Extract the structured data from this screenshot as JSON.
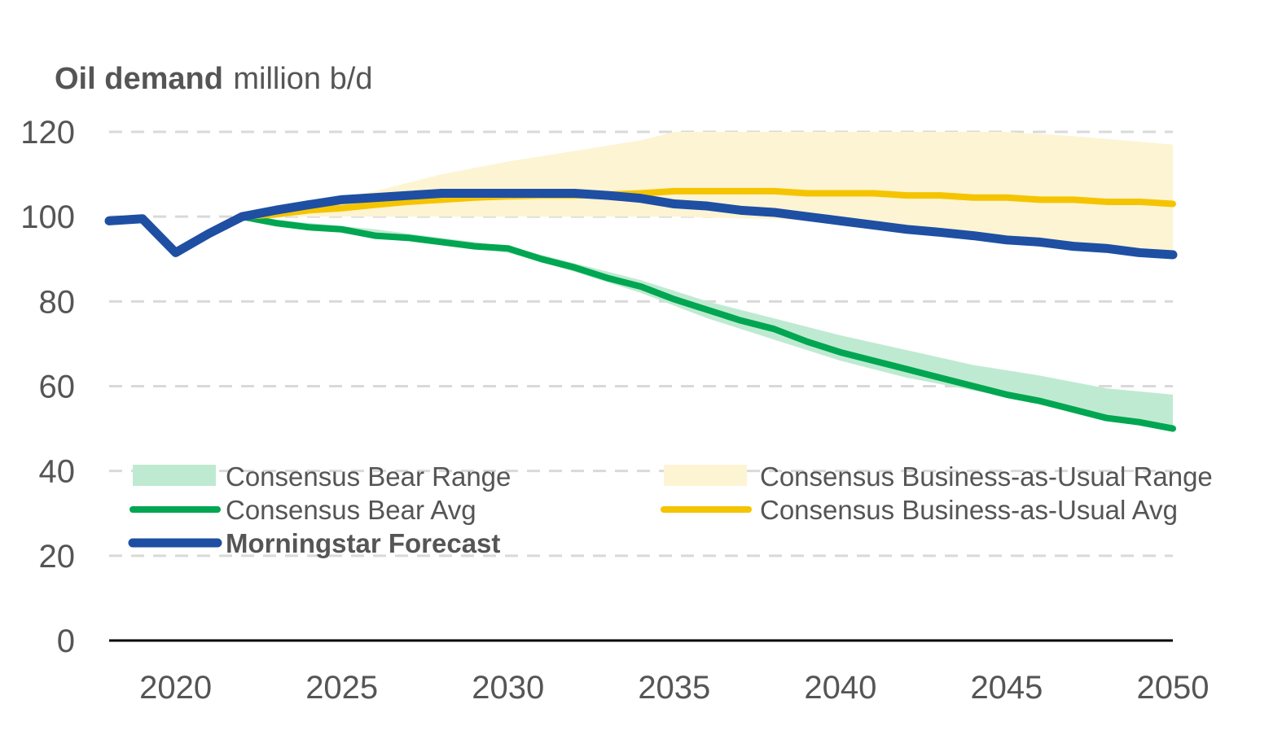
{
  "chart_data": {
    "type": "line",
    "title_bold": "Oil demand",
    "title_unit": "million b/d",
    "xlabel": "",
    "ylabel": "",
    "xlim": [
      2018,
      2050
    ],
    "ylim": [
      0,
      120
    ],
    "x_ticks": [
      2020,
      2025,
      2030,
      2035,
      2040,
      2045,
      2050
    ],
    "x_tick_labels": [
      "2020",
      "2025",
      "2030",
      "2035",
      "2040",
      "2045",
      "2050"
    ],
    "y_ticks": [
      0,
      20,
      40,
      60,
      80,
      100,
      120
    ],
    "y_tick_labels": [
      "0",
      "20",
      "40",
      "60",
      "80",
      "100",
      "120"
    ],
    "grid": "horizontal dashed",
    "legend_position": "lower-left, two columns",
    "colors": {
      "bear_avg": "#00a651",
      "bear_range": "#bfead2",
      "bau_avg": "#f5c400",
      "bau_range": "#fdf4d3",
      "forecast": "#1e4fa3",
      "axis": "#000000",
      "grid": "#d9d9d9",
      "text": "#555555"
    },
    "bands": [
      {
        "name": "Consensus Bear Range",
        "x": [
          2022,
          2024,
          2026,
          2028,
          2030,
          2032,
          2034,
          2036,
          2038,
          2040,
          2042,
          2044,
          2046,
          2048,
          2050
        ],
        "upper": [
          100,
          98.5,
          97,
          95,
          93,
          89,
          85,
          80,
          76,
          72,
          68.5,
          65,
          62.5,
          59.5,
          58
        ],
        "lower": [
          100,
          97.5,
          95.5,
          93.5,
          91.5,
          87,
          82,
          76,
          71,
          66,
          62,
          59,
          56,
          52.5,
          49.5
        ]
      },
      {
        "name": "Consensus Business-as-Usual Range",
        "x": [
          2022,
          2024,
          2026,
          2028,
          2030,
          2032,
          2034,
          2035,
          2040,
          2045,
          2047,
          2050
        ],
        "upper": [
          100,
          103,
          106,
          110,
          113,
          115.5,
          118,
          120,
          120,
          120,
          119,
          117
        ],
        "lower": [
          100,
          100,
          100,
          100,
          100,
          100,
          100,
          100,
          99,
          95,
          93,
          90
        ]
      }
    ],
    "series": [
      {
        "name": "Consensus Bear Avg",
        "x": [
          2022,
          2023,
          2024,
          2025,
          2026,
          2027,
          2028,
          2029,
          2030,
          2031,
          2032,
          2033,
          2034,
          2035,
          2036,
          2037,
          2038,
          2039,
          2040,
          2041,
          2042,
          2043,
          2044,
          2045,
          2046,
          2047,
          2048,
          2049,
          2050
        ],
        "values": [
          100,
          98.5,
          97.5,
          97,
          95.5,
          95,
          94,
          93,
          92.5,
          90,
          88,
          85.5,
          83.5,
          80.5,
          78,
          75.5,
          73.5,
          70.5,
          68,
          66,
          64,
          62,
          60,
          58,
          56.5,
          54.5,
          52.5,
          51.5,
          50
        ]
      },
      {
        "name": "Consensus Business-as-Usual Avg",
        "x": [
          2022,
          2023,
          2024,
          2025,
          2026,
          2027,
          2028,
          2029,
          2030,
          2031,
          2032,
          2033,
          2034,
          2035,
          2036,
          2037,
          2038,
          2039,
          2040,
          2041,
          2042,
          2043,
          2044,
          2045,
          2046,
          2047,
          2048,
          2049,
          2050
        ],
        "values": [
          100,
          100.5,
          101.5,
          102,
          102.8,
          103.5,
          104,
          104.5,
          104.8,
          105,
          105,
          105.2,
          105.5,
          106,
          106,
          106,
          106,
          105.5,
          105.5,
          105.5,
          105,
          105,
          104.5,
          104.5,
          104,
          104,
          103.5,
          103.5,
          103
        ]
      },
      {
        "name": "Morningstar Forecast",
        "x": [
          2018,
          2019,
          2020,
          2021,
          2022,
          2023,
          2024,
          2025,
          2026,
          2027,
          2028,
          2029,
          2030,
          2031,
          2032,
          2033,
          2034,
          2035,
          2036,
          2037,
          2038,
          2039,
          2040,
          2041,
          2042,
          2043,
          2044,
          2045,
          2046,
          2047,
          2048,
          2049,
          2050
        ],
        "values": [
          99,
          99.5,
          91.5,
          96,
          100,
          101.5,
          102.8,
          104,
          104.5,
          105,
          105.5,
          105.5,
          105.5,
          105.5,
          105.5,
          105,
          104.3,
          103,
          102.5,
          101.5,
          101,
          100,
          99,
          98,
          97,
          96.3,
          95.5,
          94.5,
          94,
          93,
          92.5,
          91.5,
          91
        ]
      }
    ],
    "legend": [
      {
        "label": "Consensus Bear Range",
        "kind": "band",
        "color_key": "bear_range",
        "bold": false
      },
      {
        "label": "Consensus Business-as-Usual Range",
        "kind": "band",
        "color_key": "bau_range",
        "bold": false
      },
      {
        "label": "Consensus Bear Avg",
        "kind": "line",
        "color_key": "bear_avg",
        "bold": false
      },
      {
        "label": "Consensus Business-as-Usual Avg",
        "kind": "line",
        "color_key": "bau_avg",
        "bold": false
      },
      {
        "label": "Morningstar Forecast",
        "kind": "line",
        "color_key": "forecast",
        "bold": true
      }
    ]
  }
}
